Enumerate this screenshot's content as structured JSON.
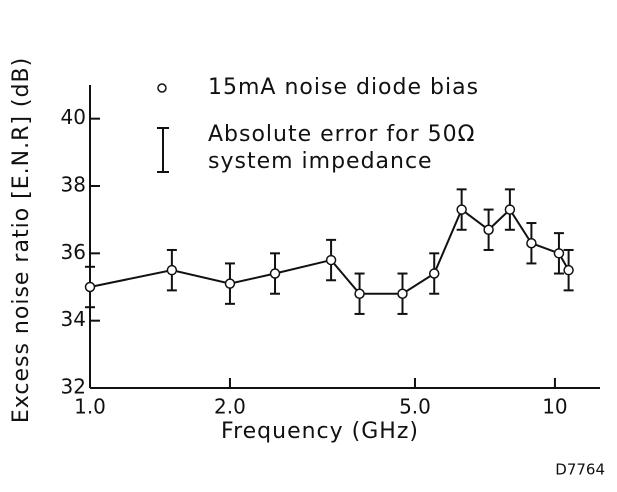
{
  "chart_data": {
    "type": "line",
    "x_label": "Frequency   (GHz)",
    "y_label": "Excess  noise  ratio  [E.N.R]  (dB)",
    "annotation": "D7764",
    "x_log": true,
    "xlim": [
      1.0,
      12.5
    ],
    "xticks": [
      {
        "value": 1,
        "label": "1.0"
      },
      {
        "value": 2,
        "label": "2.0"
      },
      {
        "value": 5,
        "label": "5.0"
      },
      10
    ],
    "ylim": [
      32,
      41
    ],
    "yticks": [
      32,
      34,
      36,
      38,
      40
    ],
    "legend": {
      "marker_label": "15mA noise diode bias",
      "error_label": [
        "Absolute error  for 50Ω",
        "system impedance"
      ]
    },
    "series": [
      {
        "name": "15mA noise diode bias",
        "color": "#111111",
        "x": [
          1.0,
          1.5,
          2.0,
          2.5,
          3.3,
          3.8,
          4.7,
          5.5,
          6.3,
          7.2,
          8.0,
          8.9,
          10.2,
          10.7
        ],
        "values": [
          35.0,
          35.5,
          35.1,
          35.4,
          35.8,
          34.8,
          34.8,
          35.4,
          37.3,
          36.7,
          37.3,
          36.3,
          36.0,
          35.5
        ],
        "errors": [
          0.6,
          0.6,
          0.6,
          0.6,
          0.6,
          0.6,
          0.6,
          0.6,
          0.6,
          0.6,
          0.6,
          0.6,
          0.6,
          0.6
        ]
      }
    ]
  }
}
